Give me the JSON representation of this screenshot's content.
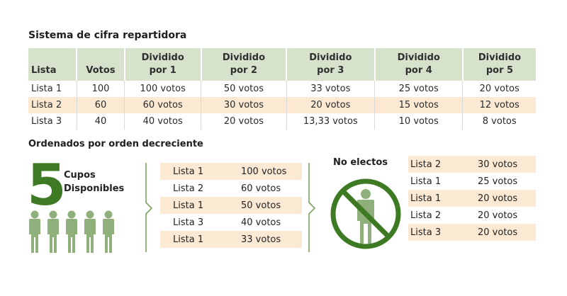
{
  "title": "Sistema de cifra repartidora",
  "table": {
    "headers": [
      "Lista",
      "Votos",
      "Dividido por 1",
      "Dividido por 2",
      "Dividido por 3",
      "Dividido por 4",
      "Dividido por 5"
    ],
    "rows": [
      [
        "Lista 1",
        "100",
        "100 votos",
        "50 votos",
        "33 votos",
        "25 votos",
        "20 votos"
      ],
      [
        "Lista 2",
        "60",
        "60 votos",
        "30 votos",
        "20 votos",
        "15 votos",
        "12 votos"
      ],
      [
        "Lista 3",
        "40",
        "40 votos",
        "20 votos",
        "13,33 votos",
        "10 votos",
        "8 votos"
      ]
    ]
  },
  "subtitle": "Ordenados por orden decreciente",
  "cupos": {
    "number": "5",
    "label_line1": "Cupos",
    "label_line2": "Disponibles"
  },
  "ranked": [
    {
      "lista": "Lista 1",
      "votos": "100 votos"
    },
    {
      "lista": "Lista 2",
      "votos": "60 votos"
    },
    {
      "lista": "Lista 1",
      "votos": "50 votos"
    },
    {
      "lista": "Lista 3",
      "votos": "40 votos"
    },
    {
      "lista": "Lista 1",
      "votos": "33 votos"
    }
  ],
  "no_electos": {
    "title": "No electos",
    "rows": [
      {
        "lista": "Lista 2",
        "votos": "30 votos"
      },
      {
        "lista": "Lista 1",
        "votos": "25 votos"
      },
      {
        "lista": "Lista 1",
        "votos": "20 votos"
      },
      {
        "lista": "Lista 2",
        "votos": "20 votos"
      },
      {
        "lista": "Lista 3",
        "votos": "20 votos"
      }
    ]
  },
  "colors": {
    "green": "#3e7a24",
    "person": "#8fb07a",
    "header_bg": "#d6e2cc",
    "alt_row": "#fce9d3"
  },
  "icons": [
    "person-icon",
    "no-entry-person-icon"
  ]
}
